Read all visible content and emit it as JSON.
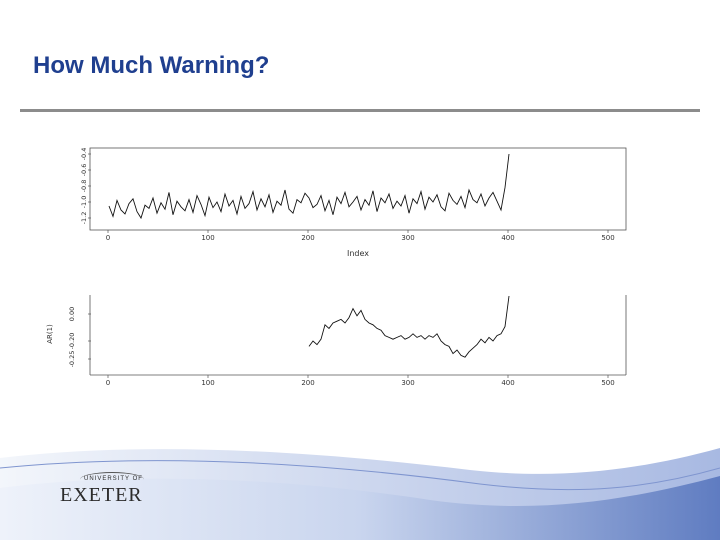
{
  "slide": {
    "title": "How Much Warning?"
  },
  "logo": {
    "top_text": "UNIVERSITY OF",
    "name": "EXETER"
  },
  "colors": {
    "title": "#1f3f8f",
    "rule": "#8c8c8c",
    "wave_light": "#d9e2f3",
    "wave_dark": "#6d87c4"
  },
  "chart_data": [
    {
      "type": "line",
      "xlabel": "Index",
      "ylabel": "",
      "xlim": [
        0,
        500
      ],
      "ylim": [
        -1.3,
        -0.35
      ],
      "x_ticks": [
        "0",
        "100",
        "200",
        "300",
        "400",
        "500"
      ],
      "y_ticks": [
        "-1.2",
        "-1.0",
        "-0.8",
        "-0.6",
        "-0.4"
      ],
      "series": [
        {
          "x_start": 1,
          "x_step": 4,
          "values": [
            -1.05,
            -1.18,
            -0.98,
            -1.1,
            -1.15,
            -1.02,
            -0.96,
            -1.12,
            -1.2,
            -1.04,
            -1.08,
            -0.95,
            -1.14,
            -1.01,
            -1.09,
            -0.88,
            -1.16,
            -0.99,
            -1.06,
            -1.11,
            -0.97,
            -1.13,
            -0.92,
            -1.03,
            -1.17,
            -0.94,
            -1.07,
            -1.0,
            -1.12,
            -0.9,
            -1.05,
            -0.98,
            -1.15,
            -0.93,
            -1.08,
            -1.02,
            -0.87,
            -1.1,
            -0.96,
            -1.06,
            -0.91,
            -1.13,
            -0.99,
            -1.04,
            -0.85,
            -1.09,
            -1.14,
            -0.97,
            -1.01,
            -0.89,
            -0.95,
            -1.07,
            -1.03,
            -0.92,
            -1.11,
            -0.98,
            -1.16,
            -0.94,
            -1.02,
            -0.88,
            -1.06,
            -1.0,
            -0.93,
            -1.1,
            -0.97,
            -1.04,
            -0.86,
            -1.12,
            -0.95,
            -1.01,
            -0.9,
            -1.08,
            -0.99,
            -1.05,
            -0.92,
            -1.14,
            -0.96,
            -1.02,
            -0.87,
            -1.09,
            -0.94,
            -1.0,
            -0.91,
            -1.06,
            -1.11,
            -0.89,
            -0.98,
            -1.03,
            -0.93,
            -1.07,
            -0.85,
            -0.97,
            -1.01,
            -0.9,
            -1.05,
            -0.95,
            -0.88,
            -0.99,
            -1.1,
            -0.82,
            -0.4
          ]
        }
      ]
    },
    {
      "type": "line",
      "xlabel": "",
      "ylabel": "AR(1)",
      "xlim": [
        0,
        500
      ],
      "ylim": [
        -0.3,
        0.1
      ],
      "x_ticks": [
        "0",
        "100",
        "200",
        "300",
        "400",
        "500"
      ],
      "y_ticks": [
        "0.00",
        "-0.20",
        "-0.25"
      ],
      "series": [
        {
          "x_start": 201,
          "x_step": 4,
          "values": [
            -0.18,
            -0.15,
            -0.17,
            -0.14,
            -0.06,
            -0.08,
            -0.05,
            -0.04,
            -0.03,
            -0.05,
            -0.02,
            0.03,
            -0.01,
            0.02,
            -0.03,
            -0.05,
            -0.06,
            -0.08,
            -0.09,
            -0.12,
            -0.13,
            -0.14,
            -0.13,
            -0.12,
            -0.14,
            -0.13,
            -0.11,
            -0.13,
            -0.12,
            -0.14,
            -0.12,
            -0.13,
            -0.11,
            -0.15,
            -0.17,
            -0.18,
            -0.22,
            -0.2,
            -0.23,
            -0.24,
            -0.21,
            -0.19,
            -0.17,
            -0.14,
            -0.16,
            -0.13,
            -0.15,
            -0.12,
            -0.11,
            -0.07,
            0.1
          ]
        }
      ]
    }
  ]
}
